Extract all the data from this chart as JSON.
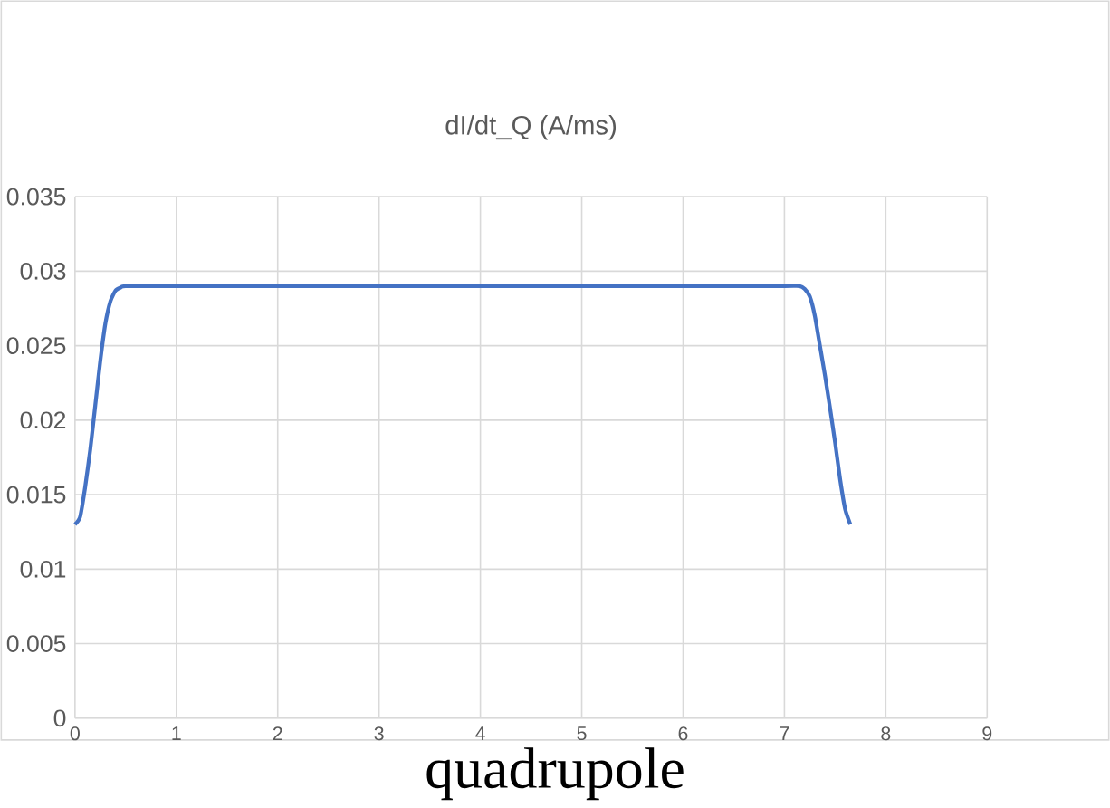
{
  "chart_data": {
    "type": "line",
    "title": "dI/dt_Q (A/ms)",
    "x": [
      0,
      0.05,
      0.1,
      0.15,
      0.2,
      0.25,
      0.3,
      0.35,
      0.4,
      0.45,
      0.5,
      1,
      2,
      3,
      4,
      5,
      6,
      7,
      7.15,
      7.2,
      7.25,
      7.3,
      7.35,
      7.4,
      7.45,
      7.5,
      7.55,
      7.6,
      7.65
    ],
    "series": [
      {
        "color": "#4472c4",
        "values": [
          0.013,
          0.0135,
          0.0155,
          0.018,
          0.021,
          0.024,
          0.0265,
          0.028,
          0.0287,
          0.0289,
          0.029,
          0.029,
          0.029,
          0.029,
          0.029,
          0.029,
          0.029,
          0.029,
          0.029,
          0.0288,
          0.0283,
          0.027,
          0.025,
          0.023,
          0.0208,
          0.0185,
          0.016,
          0.014,
          0.013
        ]
      }
    ],
    "xlim": [
      0,
      9
    ],
    "xticks": [
      0,
      1,
      2,
      3,
      4,
      5,
      6,
      7,
      8,
      9
    ],
    "ylim": [
      0,
      0.035
    ],
    "yticks": [
      0,
      0.005,
      0.01,
      0.015,
      0.02,
      0.025,
      0.03,
      0.035
    ],
    "grid": true,
    "marker": "none",
    "line_style": "solid",
    "annotations": [
      "quadrupole"
    ]
  }
}
